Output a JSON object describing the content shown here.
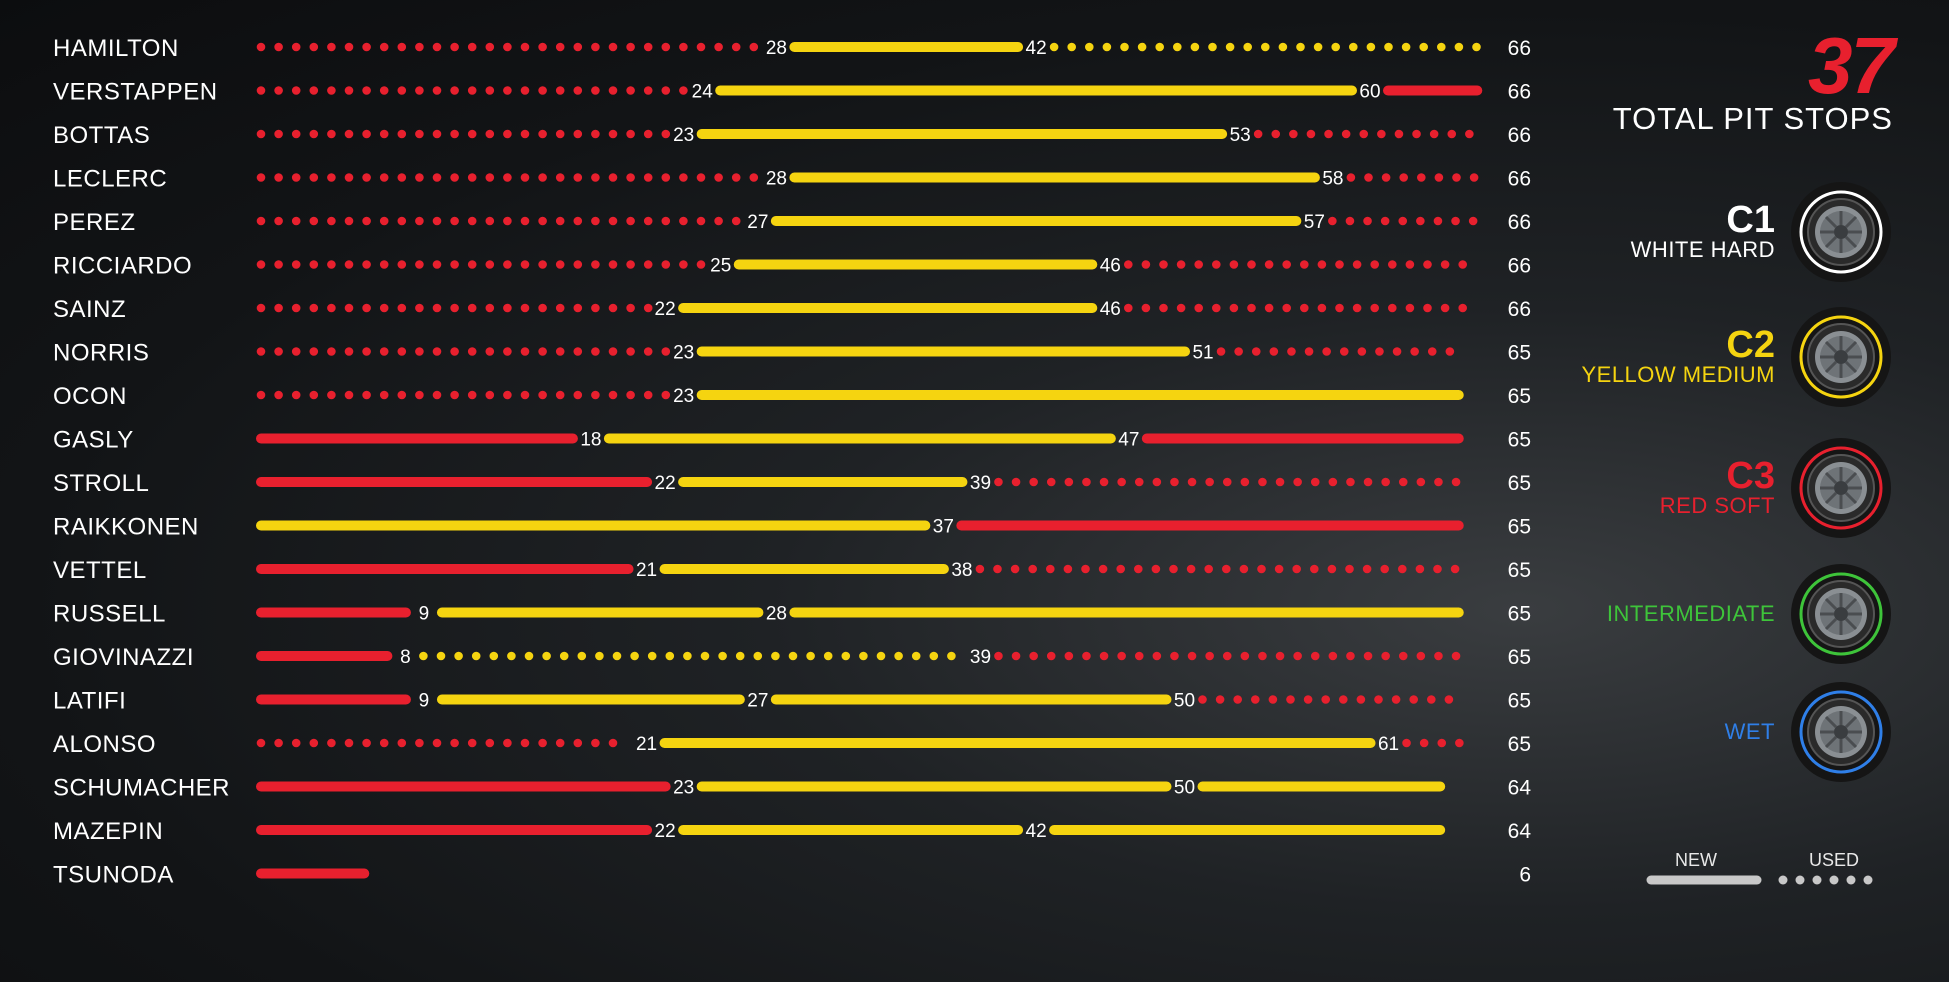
{
  "total_pit_stops": {
    "number": "37",
    "label": "TOTAL PIT STOPS"
  },
  "compounds": [
    {
      "code": "C1",
      "name": "WHITE HARD",
      "color": "#ffffff",
      "icon": "tyre-hard-icon"
    },
    {
      "code": "C2",
      "name": "YELLOW MEDIUM",
      "color": "#f5d410",
      "icon": "tyre-medium-icon"
    },
    {
      "code": "C3",
      "name": "RED SOFT",
      "color": "#e8202e",
      "icon": "tyre-soft-icon"
    },
    {
      "code": "",
      "name": "INTERMEDIATE",
      "color": "#3ec43a",
      "icon": "tyre-intermediate-icon"
    },
    {
      "code": "",
      "name": "WET",
      "color": "#2f7fe8",
      "icon": "tyre-wet-icon"
    }
  ],
  "key": {
    "new_label": "NEW",
    "used_label": "USED"
  },
  "colors": {
    "soft": "#e8202e",
    "medium": "#f5d410",
    "hard": "#ffffff"
  },
  "chart_data": {
    "type": "bar",
    "x_unit": "laps",
    "xlim": [
      0,
      66
    ],
    "drivers": [
      {
        "name": "HAMILTON",
        "total": 66,
        "stints": [
          {
            "compound": "soft",
            "state": "used",
            "start": 0,
            "end": 28
          },
          {
            "compound": "medium",
            "state": "new",
            "start": 28,
            "end": 42
          },
          {
            "compound": "medium",
            "state": "used",
            "start": 42,
            "end": 66
          }
        ],
        "labels": [
          28,
          42
        ]
      },
      {
        "name": "VERSTAPPEN",
        "total": 66,
        "stints": [
          {
            "compound": "soft",
            "state": "used",
            "start": 0,
            "end": 24
          },
          {
            "compound": "medium",
            "state": "new",
            "start": 24,
            "end": 60
          },
          {
            "compound": "soft",
            "state": "new",
            "start": 60,
            "end": 66
          }
        ],
        "labels": [
          24,
          60
        ]
      },
      {
        "name": "BOTTAS",
        "total": 66,
        "stints": [
          {
            "compound": "soft",
            "state": "used",
            "start": 0,
            "end": 23
          },
          {
            "compound": "medium",
            "state": "new",
            "start": 23,
            "end": 53
          },
          {
            "compound": "soft",
            "state": "used",
            "start": 53,
            "end": 66
          }
        ],
        "labels": [
          23,
          53
        ]
      },
      {
        "name": "LECLERC",
        "total": 66,
        "stints": [
          {
            "compound": "soft",
            "state": "used",
            "start": 0,
            "end": 28
          },
          {
            "compound": "medium",
            "state": "new",
            "start": 28,
            "end": 58
          },
          {
            "compound": "soft",
            "state": "used",
            "start": 58,
            "end": 66
          }
        ],
        "labels": [
          28,
          58
        ]
      },
      {
        "name": "PEREZ",
        "total": 66,
        "stints": [
          {
            "compound": "soft",
            "state": "used",
            "start": 0,
            "end": 27
          },
          {
            "compound": "medium",
            "state": "new",
            "start": 27,
            "end": 57
          },
          {
            "compound": "soft",
            "state": "used",
            "start": 57,
            "end": 66
          }
        ],
        "labels": [
          27,
          57
        ]
      },
      {
        "name": "RICCIARDO",
        "total": 66,
        "stints": [
          {
            "compound": "soft",
            "state": "used",
            "start": 0,
            "end": 25
          },
          {
            "compound": "medium",
            "state": "new",
            "start": 25,
            "end": 46
          },
          {
            "compound": "soft",
            "state": "used",
            "start": 46,
            "end": 66
          }
        ],
        "labels": [
          25,
          46
        ]
      },
      {
        "name": "SAINZ",
        "total": 66,
        "stints": [
          {
            "compound": "soft",
            "state": "used",
            "start": 0,
            "end": 22
          },
          {
            "compound": "medium",
            "state": "new",
            "start": 22,
            "end": 46
          },
          {
            "compound": "soft",
            "state": "used",
            "start": 46,
            "end": 66
          }
        ],
        "labels": [
          22,
          46
        ]
      },
      {
        "name": "NORRIS",
        "total": 65,
        "stints": [
          {
            "compound": "soft",
            "state": "used",
            "start": 0,
            "end": 23
          },
          {
            "compound": "medium",
            "state": "new",
            "start": 23,
            "end": 51
          },
          {
            "compound": "soft",
            "state": "used",
            "start": 51,
            "end": 65
          }
        ],
        "labels": [
          23,
          51
        ]
      },
      {
        "name": "OCON",
        "total": 65,
        "stints": [
          {
            "compound": "soft",
            "state": "used",
            "start": 0,
            "end": 23
          },
          {
            "compound": "medium",
            "state": "new",
            "start": 23,
            "end": 65
          }
        ],
        "labels": [
          23
        ]
      },
      {
        "name": "GASLY",
        "total": 65,
        "stints": [
          {
            "compound": "soft",
            "state": "new",
            "start": 0,
            "end": 18
          },
          {
            "compound": "medium",
            "state": "new",
            "start": 18,
            "end": 47
          },
          {
            "compound": "soft",
            "state": "new",
            "start": 47,
            "end": 65
          }
        ],
        "labels": [
          18,
          47
        ]
      },
      {
        "name": "STROLL",
        "total": 65,
        "stints": [
          {
            "compound": "soft",
            "state": "new",
            "start": 0,
            "end": 22
          },
          {
            "compound": "medium",
            "state": "new",
            "start": 22,
            "end": 39
          },
          {
            "compound": "soft",
            "state": "used",
            "start": 39,
            "end": 65
          }
        ],
        "labels": [
          22,
          39
        ]
      },
      {
        "name": "RAIKKONEN",
        "total": 65,
        "stints": [
          {
            "compound": "medium",
            "state": "new",
            "start": 0,
            "end": 37
          },
          {
            "compound": "soft",
            "state": "new",
            "start": 37,
            "end": 65
          }
        ],
        "labels": [
          37
        ]
      },
      {
        "name": "VETTEL",
        "total": 65,
        "stints": [
          {
            "compound": "soft",
            "state": "new",
            "start": 0,
            "end": 21
          },
          {
            "compound": "medium",
            "state": "new",
            "start": 21,
            "end": 38
          },
          {
            "compound": "soft",
            "state": "used",
            "start": 38,
            "end": 65
          }
        ],
        "labels": [
          21,
          38
        ]
      },
      {
        "name": "RUSSELL",
        "total": 65,
        "stints": [
          {
            "compound": "soft",
            "state": "new",
            "start": 0,
            "end": 9
          },
          {
            "compound": "medium",
            "state": "new",
            "start": 9,
            "end": 28
          },
          {
            "compound": "medium",
            "state": "new",
            "start": 28,
            "end": 65
          }
        ],
        "labels": [
          9,
          28
        ]
      },
      {
        "name": "GIOVINAZZI",
        "total": 65,
        "stints": [
          {
            "compound": "soft",
            "state": "new",
            "start": 0,
            "end": 8
          },
          {
            "compound": "medium",
            "state": "used",
            "start": 8,
            "end": 39
          },
          {
            "compound": "soft",
            "state": "used",
            "start": 39,
            "end": 65
          }
        ],
        "labels": [
          8,
          39
        ]
      },
      {
        "name": "LATIFI",
        "total": 65,
        "stints": [
          {
            "compound": "soft",
            "state": "new",
            "start": 0,
            "end": 9
          },
          {
            "compound": "medium",
            "state": "new",
            "start": 9,
            "end": 27
          },
          {
            "compound": "medium",
            "state": "new",
            "start": 27,
            "end": 50
          },
          {
            "compound": "soft",
            "state": "used",
            "start": 50,
            "end": 65
          }
        ],
        "labels": [
          9,
          27,
          50
        ]
      },
      {
        "name": "ALONSO",
        "total": 65,
        "stints": [
          {
            "compound": "soft",
            "state": "used",
            "start": 0,
            "end": 21
          },
          {
            "compound": "medium",
            "state": "new",
            "start": 21,
            "end": 61
          },
          {
            "compound": "soft",
            "state": "used",
            "start": 61,
            "end": 65
          }
        ],
        "labels": [
          21,
          61
        ]
      },
      {
        "name": "SCHUMACHER",
        "total": 64,
        "stints": [
          {
            "compound": "soft",
            "state": "new",
            "start": 0,
            "end": 23
          },
          {
            "compound": "medium",
            "state": "new",
            "start": 23,
            "end": 50
          },
          {
            "compound": "medium",
            "state": "new",
            "start": 50,
            "end": 64
          }
        ],
        "labels": [
          23,
          50
        ]
      },
      {
        "name": "MAZEPIN",
        "total": 64,
        "stints": [
          {
            "compound": "soft",
            "state": "new",
            "start": 0,
            "end": 22
          },
          {
            "compound": "medium",
            "state": "new",
            "start": 22,
            "end": 42
          },
          {
            "compound": "medium",
            "state": "new",
            "start": 42,
            "end": 64
          }
        ],
        "labels": [
          22,
          42
        ]
      },
      {
        "name": "TSUNODA",
        "total": 6,
        "stints": [
          {
            "compound": "soft",
            "state": "new",
            "start": 0,
            "end": 6
          }
        ],
        "labels": []
      }
    ]
  }
}
